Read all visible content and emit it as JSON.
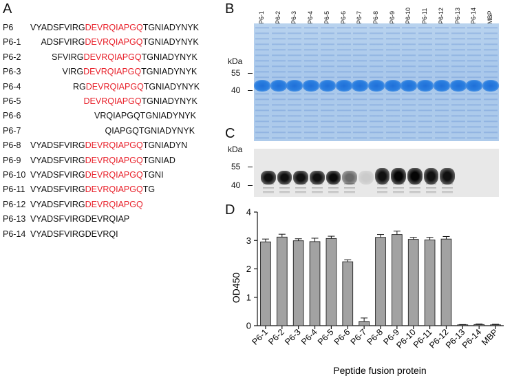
{
  "panels": {
    "a": "A",
    "b": "B",
    "c": "C",
    "d": "D"
  },
  "panel_a": {
    "rows": [
      {
        "id": "P6",
        "pre": "VYADSFVIRG",
        "red": "DEVRQIAPGQ",
        "post": "TGNIADYNYK",
        "offset": 0
      },
      {
        "id": "P6-1",
        "pre": "ADSFVIRG",
        "red": "DEVRQIAPGQ",
        "post": "TGNIADYNYK",
        "offset": 2
      },
      {
        "id": "P6-2",
        "pre": "SFVIRG",
        "red": "DEVRQIAPGQ",
        "post": "TGNIADYNYK",
        "offset": 4
      },
      {
        "id": "P6-3",
        "pre": "VIRG",
        "red": "DEVRQIAPGQ",
        "post": "TGNIADYNYK",
        "offset": 6
      },
      {
        "id": "P6-4",
        "pre": "RG",
        "red": "DEVRQIAPGQ",
        "post": "TGNIADYNYK",
        "offset": 8
      },
      {
        "id": "P6-5",
        "pre": "",
        "red": "DEVRQIAPGQ",
        "post": "TGNIADYNYK",
        "offset": 10
      },
      {
        "id": "P6-6",
        "pre": "VRQIAPGQTGNIADYNYK",
        "red": "",
        "post": "",
        "offset": 12
      },
      {
        "id": "P6-7",
        "pre": "QIAPGQTGNIADYNYK",
        "red": "",
        "post": "",
        "offset": 14
      },
      {
        "id": "P6-8",
        "pre": "VYADSFVIRG",
        "red": "DEVRQIAPGQ",
        "post": "TGNIADYN",
        "offset": 0
      },
      {
        "id": "P6-9",
        "pre": "VYADSFVIRG",
        "red": "DEVRQIAPGQ",
        "post": "TGNIAD",
        "offset": 0
      },
      {
        "id": "P6-10",
        "pre": "VYADSFVIRG",
        "red": "DEVRQIAPGQ",
        "post": "TGNI",
        "offset": 0
      },
      {
        "id": "P6-11",
        "pre": "VYADSFVIRG",
        "red": "DEVRQIAPGQ",
        "post": "TG",
        "offset": 0
      },
      {
        "id": "P6-12",
        "pre": "VYADSFVIRG",
        "red": "DEVRQIAPGQ",
        "post": "",
        "offset": 0
      },
      {
        "id": "P6-13",
        "pre": "VYADSFVIRGDEVRQIAP",
        "red": "",
        "post": "",
        "offset": 0
      },
      {
        "id": "P6-14",
        "pre": "VYADSFVIRGDEVRQI",
        "red": "",
        "post": "",
        "offset": 0
      }
    ]
  },
  "panel_b": {
    "lanes": [
      "P6-1",
      "P6-2",
      "P6-3",
      "P6-4",
      "P6-5",
      "P6-6",
      "P6-7",
      "P6-8",
      "P6-9",
      "P6-10",
      "P6-11",
      "P6-12",
      "P6-13",
      "P6-14",
      "MBP"
    ],
    "kda_label": "kDa",
    "markers": [
      "55",
      "40"
    ]
  },
  "panel_c": {
    "kda_label": "kDa",
    "markers": [
      "55",
      "40"
    ],
    "band_intensity": [
      0.95,
      0.95,
      0.95,
      0.95,
      0.98,
      0.55,
      0.12,
      0.95,
      1.0,
      1.0,
      0.95,
      0.95,
      0.0,
      0.0,
      0.0
    ]
  },
  "chart_data": {
    "type": "bar",
    "categories": [
      "P6-1",
      "P6-2",
      "P6-3",
      "P6-4",
      "P6-5",
      "P6-6",
      "P6-7",
      "P6-8",
      "P6-9",
      "P6-10",
      "P6-11",
      "P6-12",
      "P6-13",
      "P6-14",
      "MBP"
    ],
    "values": [
      2.95,
      3.12,
      2.99,
      2.96,
      3.07,
      2.25,
      0.15,
      3.11,
      3.21,
      3.04,
      3.02,
      3.05,
      0.03,
      0.04,
      0.03
    ],
    "errors": [
      0.1,
      0.1,
      0.07,
      0.12,
      0.08,
      0.07,
      0.12,
      0.1,
      0.12,
      0.07,
      0.09,
      0.09,
      0.01,
      0.02,
      0.02
    ],
    "ylabel": "OD450",
    "xlabel": "Peptide fusion protein",
    "ylim": [
      0,
      4
    ],
    "yticks": [
      "0",
      "1",
      "2",
      "3",
      "4"
    ],
    "bar_color": "#a2a2a2",
    "grid": false
  }
}
